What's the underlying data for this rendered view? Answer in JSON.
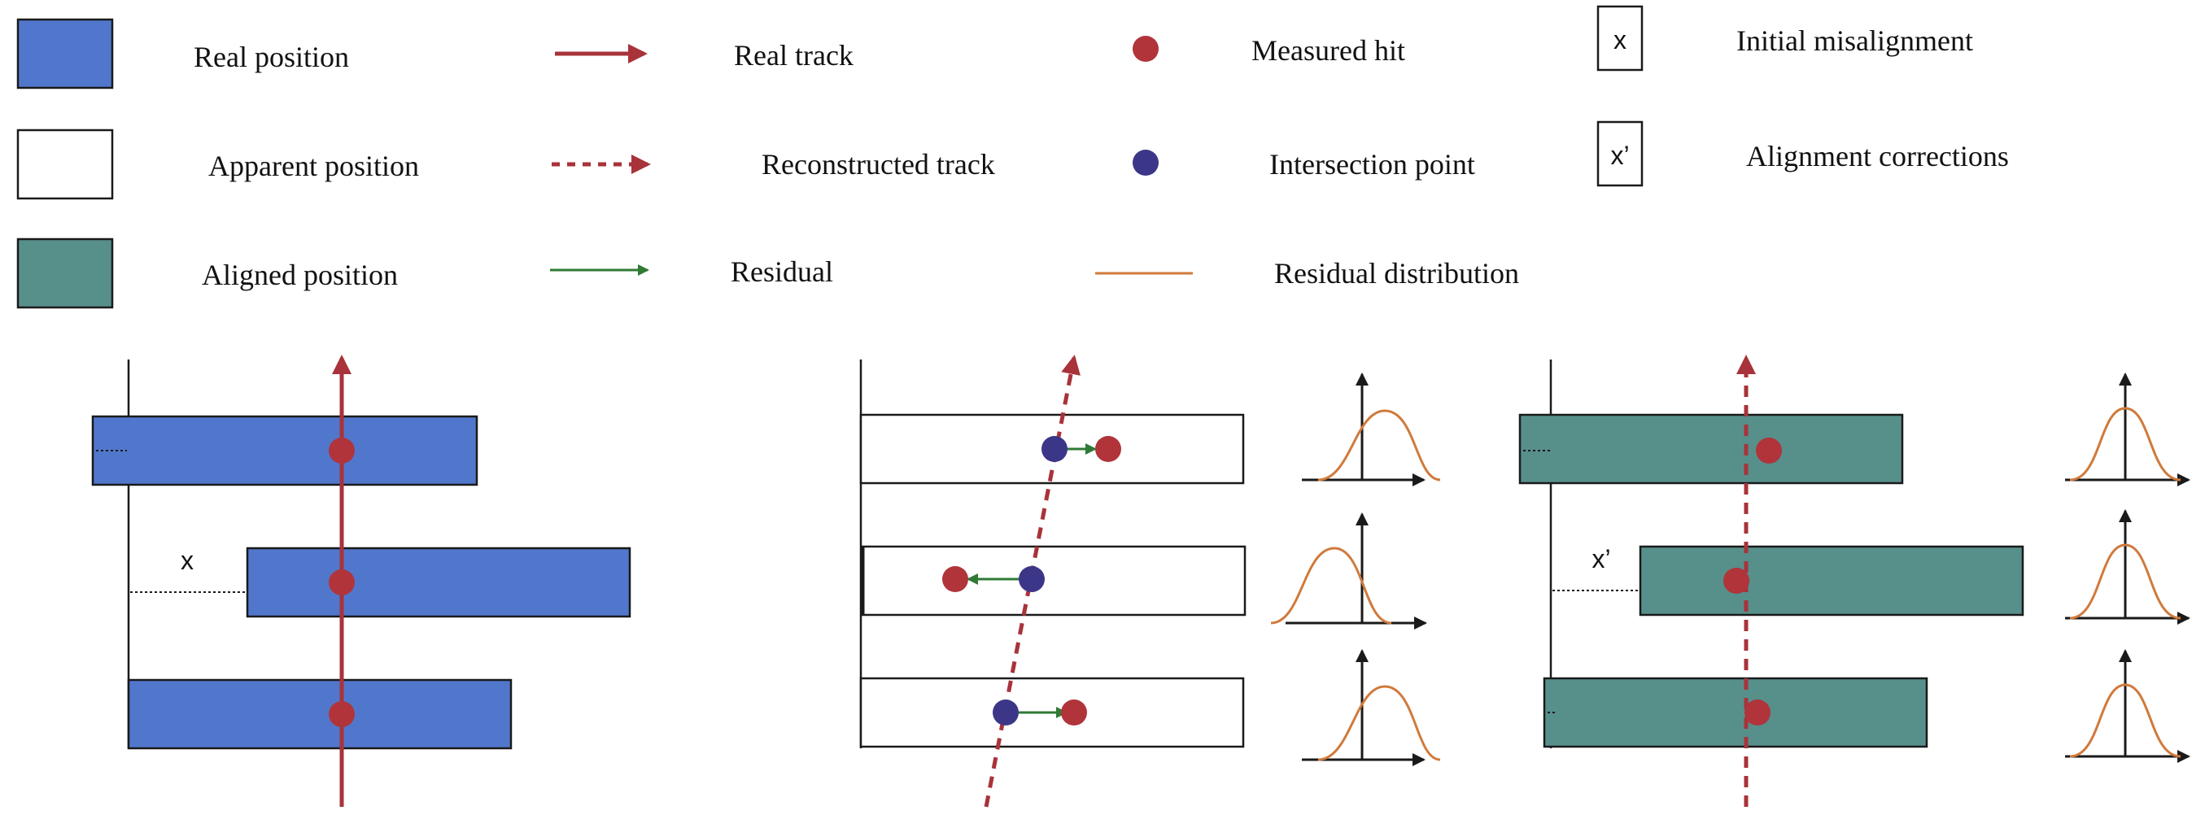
{
  "legend": {
    "real_position": "Real position",
    "apparent_position": "Apparent position",
    "aligned_position": "Aligned position",
    "real_track": "Real track",
    "reconstructed_track": "Reconstructed track",
    "residual": "Residual",
    "measured_hit": "Measured hit",
    "intersection_point": "Intersection point",
    "residual_distribution": "Residual distribution",
    "initial_misalignment_symbol": "x",
    "initial_misalignment": "Initial misalignment",
    "alignment_corrections_symbol": "x’",
    "alignment_corrections": "Alignment corrections"
  },
  "panels": {
    "misaligned": {
      "offset_label": "x"
    },
    "aligned": {
      "offset_label": "x’"
    }
  },
  "colors": {
    "real_position_fill": "#5177cc",
    "aligned_position_fill": "#578f8b",
    "apparent_position_fill": "#ffffff",
    "track": "#a8333a",
    "measured_hit": "#b0343a",
    "intersection_point": "#3c3688",
    "residual_arrow": "#2f7a34",
    "residual_distribution": "#d07a3c",
    "outline": "#1a1a1a"
  }
}
